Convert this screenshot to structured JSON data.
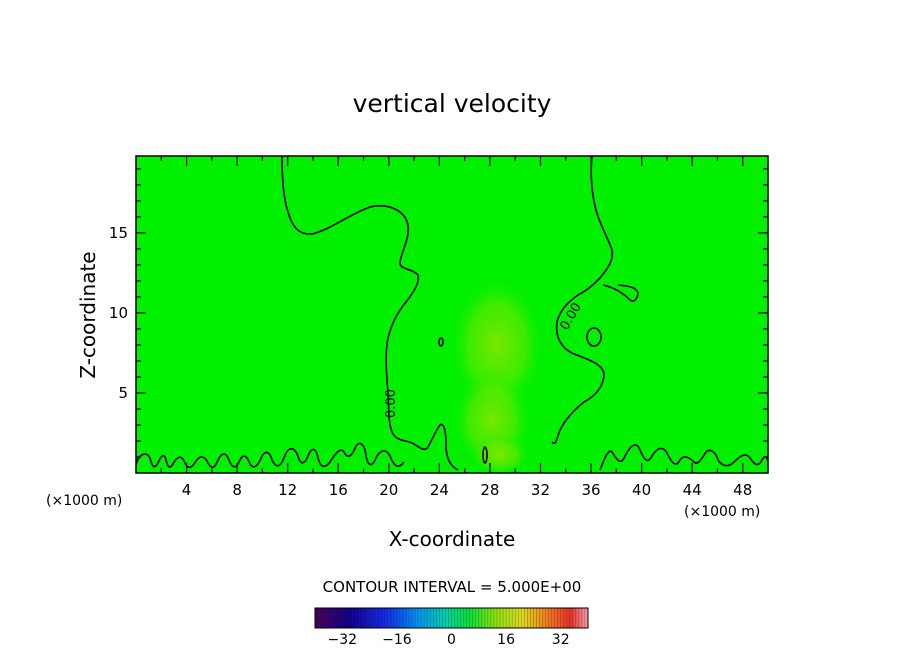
{
  "chart_data": {
    "type": "heatmap",
    "title": "vertical velocity",
    "xlabel": "X-coordinate",
    "ylabel": "Z-coordinate",
    "x_unit": "(×1000 m)",
    "y_unit": "(×1000 m)",
    "xlim": [
      0,
      50
    ],
    "ylim": [
      0,
      19.8
    ],
    "x_ticks": [
      4,
      8,
      12,
      16,
      20,
      24,
      28,
      32,
      36,
      40,
      44,
      48
    ],
    "y_ticks": [
      5,
      10,
      15
    ],
    "contour_interval_text": "CONTOUR INTERVAL = 5.000E+00",
    "contour_labels": [
      "0.00",
      "0.00"
    ],
    "colorbar": {
      "min": -40,
      "max": 40,
      "tick_values": [
        -32,
        -16,
        0,
        16,
        32
      ],
      "tick_labels": [
        "−32",
        "−16",
        "0",
        "16",
        "32"
      ]
    },
    "field_background_value": 0,
    "colors": {
      "field": "#00f000",
      "updraft_core": "#8ee600"
    }
  }
}
